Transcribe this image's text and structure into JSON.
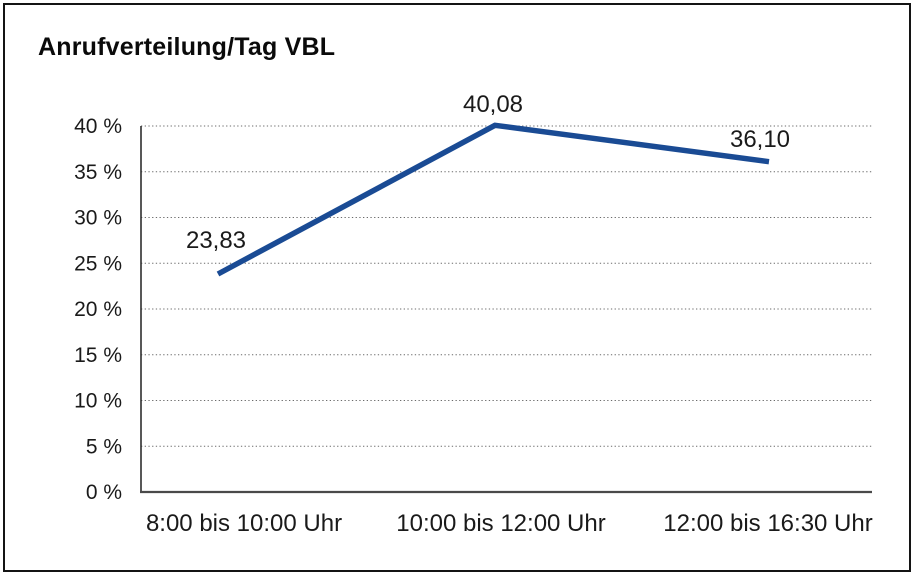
{
  "page": {
    "background": "#ffffff",
    "border_color": "#141414"
  },
  "chart_data": {
    "type": "line",
    "title": "Anrufverteilung/Tag VBL",
    "categories": [
      "8:00 bis 10:00 Uhr",
      "10:00 bis 12:00 Uhr",
      "12:00 bis 16:30 Uhr"
    ],
    "series": [
      {
        "values": [
          23.83,
          40.08,
          36.1
        ],
        "point_labels": [
          "23,83",
          "40,08",
          "36,10"
        ],
        "color": "#1a4b94"
      }
    ],
    "xlabel": "",
    "ylabel": "",
    "ylim": [
      0,
      40
    ],
    "y_tick_step": 5,
    "y_tick_labels": [
      "0 %",
      "5 %",
      "10 %",
      "15 %",
      "20 %",
      "25 %",
      "30 %",
      "35 %",
      "40 %"
    ],
    "grid": {
      "horizontal": true,
      "style": "dotted"
    },
    "legend": "none"
  }
}
